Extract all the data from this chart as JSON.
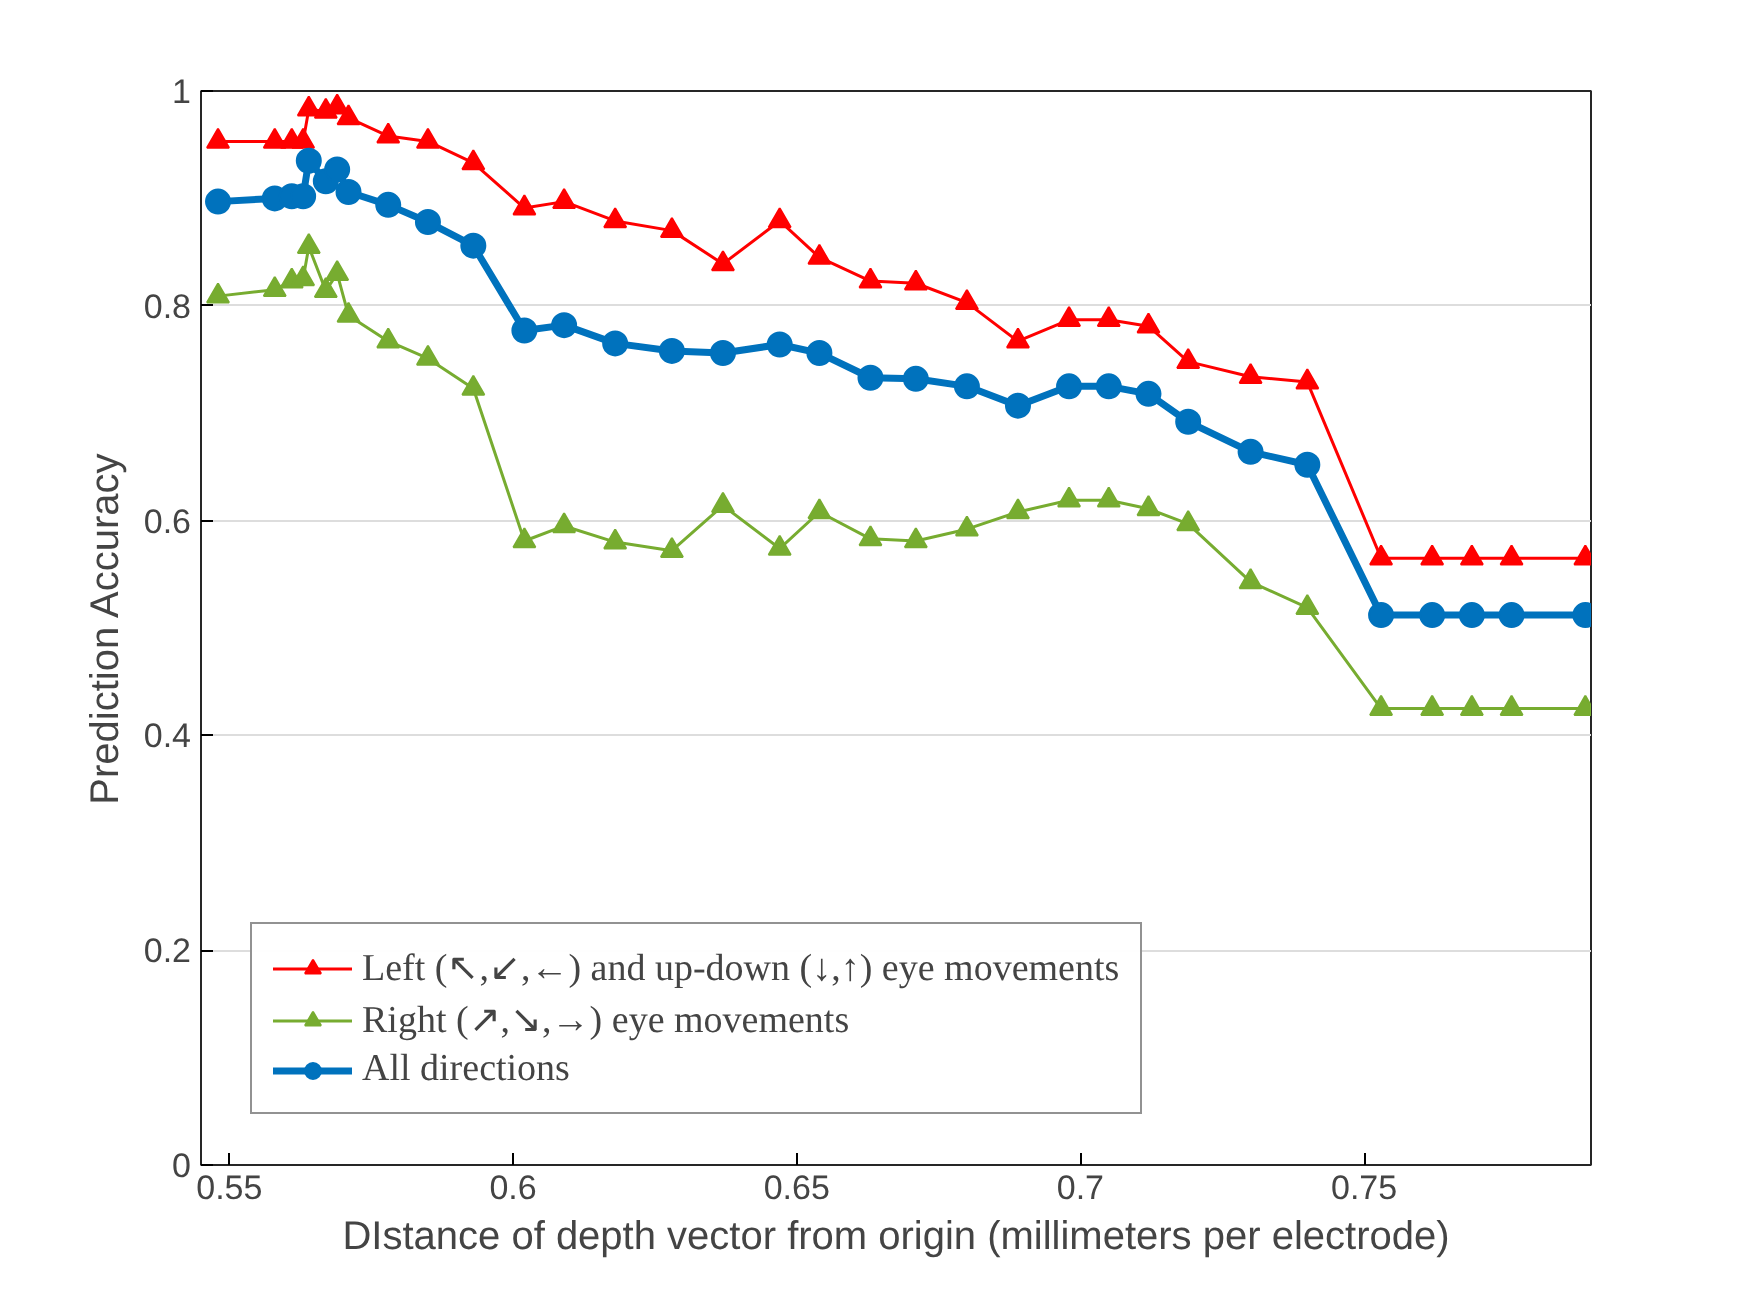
{
  "chart_data": {
    "type": "line",
    "xlabel": "DIstance of depth vector from origin (millimeters per electrode)",
    "ylabel": "Prediction Accuracy",
    "x": [
      0.548,
      0.558,
      0.561,
      0.563,
      0.564,
      0.567,
      0.569,
      0.571,
      0.578,
      0.585,
      0.593,
      0.602,
      0.609,
      0.618,
      0.628,
      0.637,
      0.647,
      0.654,
      0.663,
      0.671,
      0.68,
      0.689,
      0.698,
      0.705,
      0.712,
      0.719,
      0.73,
      0.74,
      0.753,
      0.762,
      0.769,
      0.776,
      0.789
    ],
    "series": [
      {
        "name": "Left (↖,↙,←) and up-down (↓,↑) eye movements",
        "color": "#ff0000",
        "marker": "triangle",
        "values": [
          0.953,
          0.953,
          0.953,
          0.953,
          0.983,
          0.981,
          0.985,
          0.975,
          0.958,
          0.953,
          0.933,
          0.891,
          0.897,
          0.879,
          0.87,
          0.839,
          0.879,
          0.845,
          0.823,
          0.821,
          0.803,
          0.767,
          0.787,
          0.787,
          0.781,
          0.748,
          0.734,
          0.729,
          0.565,
          0.565,
          0.565,
          0.565,
          0.565
        ]
      },
      {
        "name": "Right (↗,↘,→) eye movements",
        "color": "#77ac30",
        "marker": "triangle",
        "values": [
          0.809,
          0.815,
          0.823,
          0.825,
          0.855,
          0.814,
          0.83,
          0.791,
          0.767,
          0.751,
          0.723,
          0.581,
          0.595,
          0.58,
          0.572,
          0.614,
          0.574,
          0.608,
          0.583,
          0.581,
          0.592,
          0.608,
          0.619,
          0.619,
          0.611,
          0.597,
          0.543,
          0.519,
          0.425,
          0.425,
          0.425,
          0.425,
          0.425
        ]
      },
      {
        "name": "All directions",
        "color": "#0072bd",
        "marker": "circle",
        "values": [
          0.897,
          0.9,
          0.902,
          0.902,
          0.935,
          0.916,
          0.927,
          0.906,
          0.894,
          0.878,
          0.856,
          0.777,
          0.782,
          0.765,
          0.758,
          0.756,
          0.764,
          0.756,
          0.733,
          0.732,
          0.725,
          0.707,
          0.725,
          0.725,
          0.718,
          0.692,
          0.664,
          0.652,
          0.512,
          0.512,
          0.512,
          0.512,
          0.512
        ]
      }
    ],
    "xlim": [
      0.545,
      0.79
    ],
    "xticks": [
      0.55,
      0.6,
      0.65,
      0.7,
      0.75
    ],
    "ylim": [
      0,
      1
    ],
    "yticks": [
      0,
      0.2,
      0.4,
      0.6,
      0.8,
      1
    ],
    "grid": "y",
    "legend": "bottom left"
  }
}
